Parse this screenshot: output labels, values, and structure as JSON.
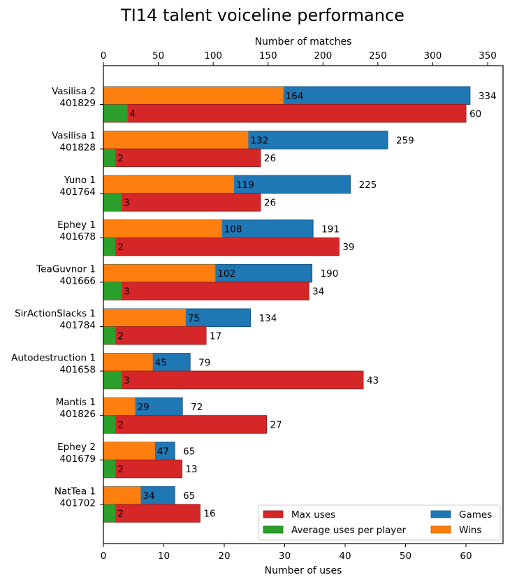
{
  "chart_data": {
    "type": "bar",
    "orientation": "horizontal",
    "title": "TI14 talent voiceline performance",
    "top_axis": {
      "label": "Number of matches",
      "range": [
        0,
        368
      ],
      "ticks": [
        0,
        50,
        100,
        150,
        200,
        250,
        300,
        350
      ]
    },
    "bottom_axis": {
      "label": "Number of uses",
      "range": [
        0,
        66
      ],
      "ticks": [
        0,
        10,
        20,
        30,
        40,
        50,
        60
      ]
    },
    "grid": false,
    "legend": {
      "position": "bottom-right",
      "entries": [
        {
          "key": "max_uses",
          "label": "Max uses",
          "color": "#d62728"
        },
        {
          "key": "avg_uses",
          "label": "Average uses per player",
          "color": "#2ca02c"
        },
        {
          "key": "games",
          "label": "Games",
          "color": "#1f77b4"
        },
        {
          "key": "wins",
          "label": "Wins",
          "color": "#ff7f0e"
        }
      ]
    },
    "categories": [
      {
        "name": "Vasilisa 2",
        "id": "401829"
      },
      {
        "name": "Vasilisa 1",
        "id": "401828"
      },
      {
        "name": "Yuno 1",
        "id": "401764"
      },
      {
        "name": "Ephey 1",
        "id": "401678"
      },
      {
        "name": "TeaGuvnor 1",
        "id": "401666"
      },
      {
        "name": "SirActionSlacks 1",
        "id": "401784"
      },
      {
        "name": "Autodestruction 1",
        "id": "401658"
      },
      {
        "name": "Mantis 1",
        "id": "401826"
      },
      {
        "name": "Ephey 2",
        "id": "401679"
      },
      {
        "name": "NatTea 1",
        "id": "401702"
      }
    ],
    "series": [
      {
        "name": "Games",
        "key": "games",
        "axis": "top",
        "values": [
          334,
          259,
          225,
          191,
          190,
          134,
          79,
          72,
          65,
          65
        ]
      },
      {
        "name": "Wins",
        "key": "wins",
        "axis": "top",
        "values": [
          164,
          132,
          119,
          108,
          102,
          75,
          45,
          29,
          47,
          34
        ]
      },
      {
        "name": "Max uses",
        "key": "max_uses",
        "axis": "bottom",
        "values": [
          60,
          26,
          26,
          39,
          34,
          17,
          43,
          27,
          13,
          16
        ]
      },
      {
        "name": "Average uses per player",
        "key": "avg_uses",
        "axis": "bottom",
        "values": [
          4,
          2,
          3,
          2,
          3,
          2,
          3,
          2,
          2,
          2
        ]
      }
    ]
  }
}
